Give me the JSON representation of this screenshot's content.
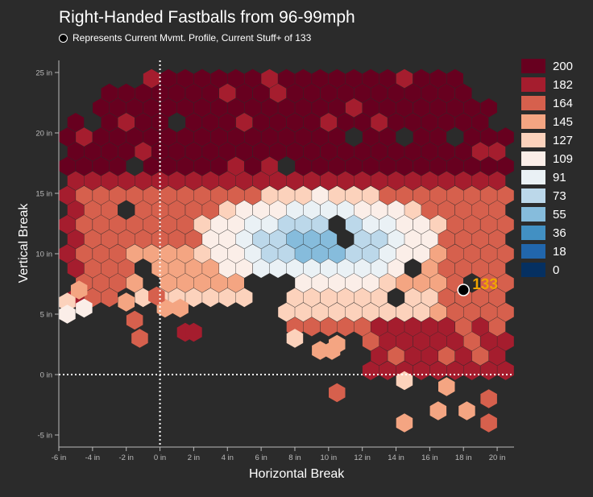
{
  "chart_data": {
    "type": "heatmap",
    "title": "Right-Handed Fastballs from 96-99mph",
    "subtitle": "Represents Current Mvmt. Profile, Current Stuff+ of 133",
    "xlabel": "Horizontal Break",
    "ylabel": "Vertical Break",
    "xlim": [
      -6,
      21
    ],
    "ylim": [
      -6,
      26
    ],
    "x_ticks": [
      -6,
      -4,
      -2,
      0,
      2,
      4,
      6,
      8,
      10,
      12,
      14,
      16,
      18,
      20
    ],
    "x_tick_labels": [
      "-6 in",
      "-4 in",
      "-2 in",
      "0 in",
      "2 in",
      "4 in",
      "6 in",
      "8 in",
      "10 in",
      "12 in",
      "14 in",
      "16 in",
      "18 in",
      "20 in"
    ],
    "y_ticks": [
      -5,
      0,
      5,
      10,
      15,
      20,
      25
    ],
    "y_tick_labels": [
      "-5 in",
      "0 in",
      "5 in",
      "10 in",
      "15 in",
      "20 in",
      "25 in"
    ],
    "reference_lines": {
      "x": 0,
      "y": 0
    },
    "color_scale": {
      "min": 0,
      "max": 200,
      "colors": [
        "#67001f",
        "#a51d2e",
        "#d6604d",
        "#f4a582",
        "#fcd2bc",
        "#fbeee8",
        "#eaf1f5",
        "#bcd8ea",
        "#86bcdc",
        "#4290c3",
        "#2166ac",
        "#053061"
      ]
    },
    "legend": {
      "position": "right",
      "entries": [
        {
          "label": "200",
          "color": "#67001f"
        },
        {
          "label": "182",
          "color": "#a51d2e"
        },
        {
          "label": "164",
          "color": "#d6604d"
        },
        {
          "label": "145",
          "color": "#f4a582"
        },
        {
          "label": "127",
          "color": "#fcd2bc"
        },
        {
          "label": "109",
          "color": "#fbeee8"
        },
        {
          "label": "91",
          "color": "#eaf1f5"
        },
        {
          "label": "73",
          "color": "#bcd8ea"
        },
        {
          "label": "55",
          "color": "#86bcdc"
        },
        {
          "label": "36",
          "color": "#4290c3"
        },
        {
          "label": "18",
          "color": "#2166ac"
        },
        {
          "label": "0",
          "color": "#053061"
        }
      ]
    },
    "current_pitch": {
      "x": 18,
      "y": 7,
      "label": "133",
      "label_color": "#f0a500"
    },
    "hexbin": {
      "hex_width_in": 1.0,
      "x_min": -5.5,
      "x_max": 20.5,
      "y_min": -4.5,
      "y_max": 25.5,
      "description_regions": [
        {
          "name": "upper-plateau",
          "x": [
            -5,
            20
          ],
          "y": [
            16,
            25
          ],
          "stuff": 195
        },
        {
          "name": "cool-pocket",
          "center": [
            10,
            11
          ],
          "radius": [
            7,
            4.5
          ],
          "stuff": 40
        },
        {
          "name": "right-tail",
          "x": [
            13,
            20
          ],
          "y": [
            -4,
            5
          ],
          "stuff": 175
        }
      ],
      "stray_cells": [
        {
          "x": -5.5,
          "y": 6,
          "stuff": 125
        },
        {
          "x": -4.5,
          "y": 5.5,
          "stuff": 118
        },
        {
          "x": -5.5,
          "y": 5,
          "stuff": 110
        },
        {
          "x": -4.8,
          "y": 7,
          "stuff": 140
        },
        {
          "x": -2,
          "y": 6,
          "stuff": 150
        },
        {
          "x": -1.5,
          "y": 4.5,
          "stuff": 155
        },
        {
          "x": -1.2,
          "y": 3,
          "stuff": 160
        },
        {
          "x": 0.3,
          "y": 5.5,
          "stuff": 150
        },
        {
          "x": 1.2,
          "y": 5.5,
          "stuff": 148
        },
        {
          "x": -0.2,
          "y": 6.5,
          "stuff": 160
        },
        {
          "x": 1.5,
          "y": 3.5,
          "stuff": 175
        },
        {
          "x": 8,
          "y": 3,
          "stuff": 125
        },
        {
          "x": 9.5,
          "y": 2,
          "stuff": 150
        },
        {
          "x": 10.2,
          "y": 2,
          "stuff": 140
        },
        {
          "x": 10.5,
          "y": 2.5,
          "stuff": 150
        },
        {
          "x": 10.5,
          "y": -1.5,
          "stuff": 165
        },
        {
          "x": 14.5,
          "y": -0.5,
          "stuff": 135
        },
        {
          "x": 14.5,
          "y": -4,
          "stuff": 150
        },
        {
          "x": 16.5,
          "y": -3,
          "stuff": 150
        },
        {
          "x": 17,
          "y": -1,
          "stuff": 150
        },
        {
          "x": 18.2,
          "y": -3,
          "stuff": 150
        },
        {
          "x": 19.5,
          "y": -4,
          "stuff": 165
        },
        {
          "x": 19.5,
          "y": -2,
          "stuff": 170
        },
        {
          "x": 2,
          "y": 3.5,
          "stuff": 175
        }
      ]
    }
  }
}
